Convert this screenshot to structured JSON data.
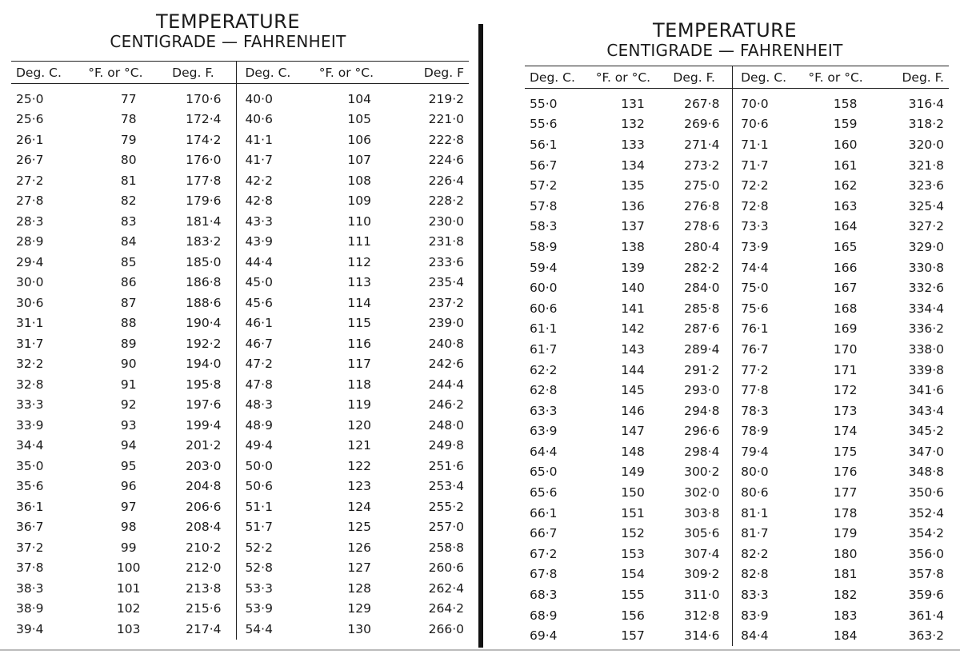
{
  "left_page": {
    "title": "TEMPERATURE",
    "subtitle": "CENTIGRADE — FAHRENHEIT",
    "headers": [
      "Deg. C.",
      "°F. or °C.",
      "Deg. F.",
      "Deg. C.",
      "°F. or °C.",
      "Deg. F"
    ],
    "rows": [
      [
        "25·0",
        "77",
        "170·6",
        "40·0",
        "104",
        "219·2"
      ],
      [
        "25·6",
        "78",
        "172·4",
        "40·6",
        "105",
        "221·0"
      ],
      [
        "26·1",
        "79",
        "174·2",
        "41·1",
        "106",
        "222·8"
      ],
      [
        "26·7",
        "80",
        "176·0",
        "41·7",
        "107",
        "224·6"
      ],
      [
        "27·2",
        "81",
        "177·8",
        "42·2",
        "108",
        "226·4"
      ],
      [
        "27·8",
        "82",
        "179·6",
        "42·8",
        "109",
        "228·2"
      ],
      [
        "28·3",
        "83",
        "181·4",
        "43·3",
        "110",
        "230·0"
      ],
      [
        "28·9",
        "84",
        "183·2",
        "43·9",
        "111",
        "231·8"
      ],
      [
        "29·4",
        "85",
        "185·0",
        "44·4",
        "112",
        "233·6"
      ],
      [
        "30·0",
        "86",
        "186·8",
        "45·0",
        "113",
        "235·4"
      ],
      [
        "30·6",
        "87",
        "188·6",
        "45·6",
        "114",
        "237·2"
      ],
      [
        "31·1",
        "88",
        "190·4",
        "46·1",
        "115",
        "239·0"
      ],
      [
        "31·7",
        "89",
        "192·2",
        "46·7",
        "116",
        "240·8"
      ],
      [
        "32·2",
        "90",
        "194·0",
        "47·2",
        "117",
        "242·6"
      ],
      [
        "32·8",
        "91",
        "195·8",
        "47·8",
        "118",
        "244·4"
      ],
      [
        "33·3",
        "92",
        "197·6",
        "48·3",
        "119",
        "246·2"
      ],
      [
        "33·9",
        "93",
        "199·4",
        "48·9",
        "120",
        "248·0"
      ],
      [
        "34·4",
        "94",
        "201·2",
        "49·4",
        "121",
        "249·8"
      ],
      [
        "35·0",
        "95",
        "203·0",
        "50·0",
        "122",
        "251·6"
      ],
      [
        "35·6",
        "96",
        "204·8",
        "50·6",
        "123",
        "253·4"
      ],
      [
        "36·1",
        "97",
        "206·6",
        "51·1",
        "124",
        "255·2"
      ],
      [
        "36·7",
        "98",
        "208·4",
        "51·7",
        "125",
        "257·0"
      ],
      [
        "37·2",
        "99",
        "210·2",
        "52·2",
        "126",
        "258·8"
      ],
      [
        "37·8",
        "100",
        "212·0",
        "52·8",
        "127",
        "260·6"
      ],
      [
        "38·3",
        "101",
        "213·8",
        "53·3",
        "128",
        "262·4"
      ],
      [
        "38·9",
        "102",
        "215·6",
        "53·9",
        "129",
        "264·2"
      ],
      [
        "39·4",
        "103",
        "217·4",
        "54·4",
        "130",
        "266·0"
      ]
    ]
  },
  "right_page": {
    "title": "TEMPERATURE",
    "subtitle": "CENTIGRADE — FAHRENHEIT",
    "headers": [
      "Deg. C.",
      "°F. or °C.",
      "Deg. F.",
      "Deg. C.",
      "°F. or °C.",
      "Deg. F."
    ],
    "rows": [
      [
        "55·0",
        "131",
        "267·8",
        "70·0",
        "158",
        "316·4"
      ],
      [
        "55·6",
        "132",
        "269·6",
        "70·6",
        "159",
        "318·2"
      ],
      [
        "56·1",
        "133",
        "271·4",
        "71·1",
        "160",
        "320·0"
      ],
      [
        "56·7",
        "134",
        "273·2",
        "71·7",
        "161",
        "321·8"
      ],
      [
        "57·2",
        "135",
        "275·0",
        "72·2",
        "162",
        "323·6"
      ],
      [
        "57·8",
        "136",
        "276·8",
        "72·8",
        "163",
        "325·4"
      ],
      [
        "58·3",
        "137",
        "278·6",
        "73·3",
        "164",
        "327·2"
      ],
      [
        "58·9",
        "138",
        "280·4",
        "73·9",
        "165",
        "329·0"
      ],
      [
        "59·4",
        "139",
        "282·2",
        "74·4",
        "166",
        "330·8"
      ],
      [
        "60·0",
        "140",
        "284·0",
        "75·0",
        "167",
        "332·6"
      ],
      [
        "60·6",
        "141",
        "285·8",
        "75·6",
        "168",
        "334·4"
      ],
      [
        "61·1",
        "142",
        "287·6",
        "76·1",
        "169",
        "336·2"
      ],
      [
        "61·7",
        "143",
        "289·4",
        "76·7",
        "170",
        "338·0"
      ],
      [
        "62·2",
        "144",
        "291·2",
        "77·2",
        "171",
        "339·8"
      ],
      [
        "62·8",
        "145",
        "293·0",
        "77·8",
        "172",
        "341·6"
      ],
      [
        "63·3",
        "146",
        "294·8",
        "78·3",
        "173",
        "343·4"
      ],
      [
        "63·9",
        "147",
        "296·6",
        "78·9",
        "174",
        "345·2"
      ],
      [
        "64·4",
        "148",
        "298·4",
        "79·4",
        "175",
        "347·0"
      ],
      [
        "65·0",
        "149",
        "300·2",
        "80·0",
        "176",
        "348·8"
      ],
      [
        "65·6",
        "150",
        "302·0",
        "80·6",
        "177",
        "350·6"
      ],
      [
        "66·1",
        "151",
        "303·8",
        "81·1",
        "178",
        "352·4"
      ],
      [
        "66·7",
        "152",
        "305·6",
        "81·7",
        "179",
        "354·2"
      ],
      [
        "67·2",
        "153",
        "307·4",
        "82·2",
        "180",
        "356·0"
      ],
      [
        "67·8",
        "154",
        "309·2",
        "82·8",
        "181",
        "357·8"
      ],
      [
        "68·3",
        "155",
        "311·0",
        "83·3",
        "182",
        "359·6"
      ],
      [
        "68·9",
        "156",
        "312·8",
        "83·9",
        "183",
        "361·4"
      ],
      [
        "69·4",
        "157",
        "314·6",
        "84·4",
        "184",
        "363·2"
      ]
    ]
  }
}
